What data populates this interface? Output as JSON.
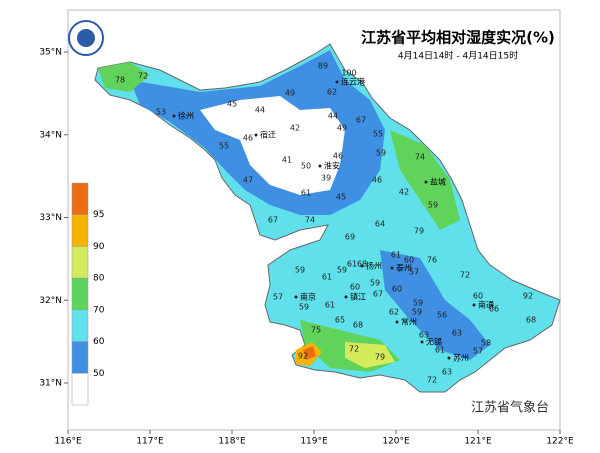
{
  "title": "江苏省平均相对湿度实况(%)",
  "subtitle": "4月14日14时 - 4月14日15时",
  "footer": "江苏省气象台",
  "lat_ticks": [
    {
      "value": 35,
      "label": "35°N"
    },
    {
      "value": 34,
      "label": "34°N"
    },
    {
      "value": 33,
      "label": "33°N"
    },
    {
      "value": 32,
      "label": "32°N"
    },
    {
      "value": 31,
      "label": "31°N"
    }
  ],
  "lon_ticks": [
    {
      "value": 116,
      "label": "116°E"
    },
    {
      "value": 117,
      "label": "117°E"
    },
    {
      "value": 118,
      "label": "118°E"
    },
    {
      "value": 119,
      "label": "119°E"
    },
    {
      "value": 120,
      "label": "120°E"
    },
    {
      "value": 121,
      "label": "121°E"
    },
    {
      "value": 122,
      "label": "122°E"
    }
  ],
  "legend": {
    "levels": [
      95,
      90,
      80,
      70,
      60,
      50
    ],
    "colors": [
      "#ec6e14",
      "#f6b400",
      "#d4ec5a",
      "#5fd35a",
      "#5fe0ea",
      "#3f8fe3",
      "#ffffff"
    ]
  },
  "cities": [
    "徐州",
    "宿迁",
    "连云港",
    "淮安",
    "盐城",
    "扬州",
    "泰州",
    "南京",
    "镇江",
    "常州",
    "南通",
    "无锡",
    "苏州"
  ],
  "stations": {
    "values": [
      78,
      72,
      53,
      45,
      44,
      49,
      89,
      100,
      62,
      44,
      67,
      49,
      55,
      42,
      55,
      46,
      46,
      59,
      74,
      41,
      50,
      39,
      47,
      46,
      42,
      61,
      45,
      59,
      67,
      74,
      64,
      79,
      69,
      61,
      60,
      76,
      59,
      61,
      59,
      61,
      68,
      57,
      72,
      59,
      67,
      57,
      59,
      61,
      60,
      60,
      59,
      60,
      92,
      66,
      65,
      68,
      62,
      59,
      56,
      68,
      75,
      63,
      63,
      58,
      61,
      57,
      72,
      79,
      92,
      63,
      72
    ]
  }
}
